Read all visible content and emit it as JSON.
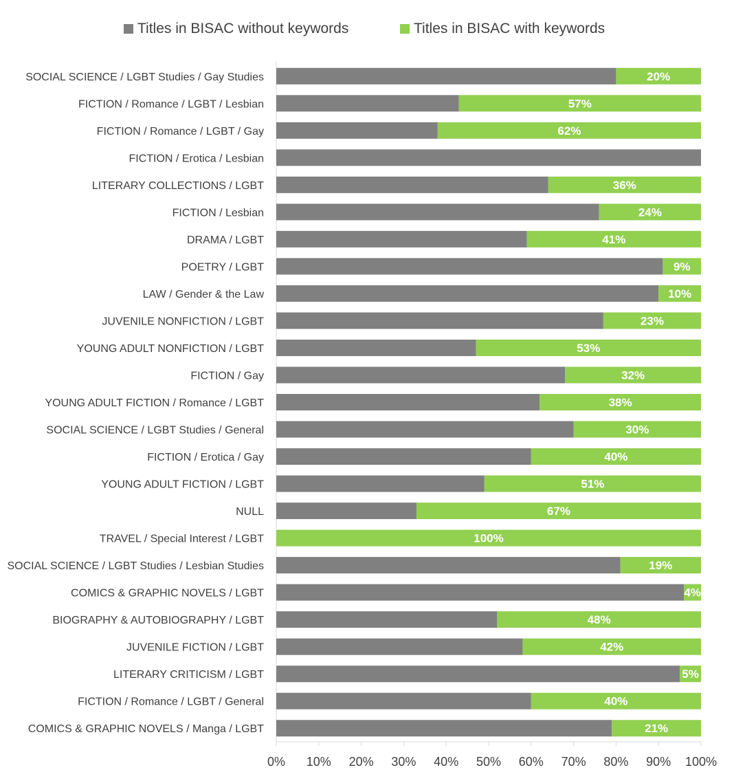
{
  "chart_data": {
    "type": "bar",
    "orientation": "horizontal",
    "stacked": "percent",
    "title": "",
    "xlabel": "",
    "ylabel": "",
    "xlim": [
      0,
      100
    ],
    "x_ticks": [
      "0%",
      "10%",
      "20%",
      "30%",
      "40%",
      "50%",
      "60%",
      "70%",
      "80%",
      "90%",
      "100%"
    ],
    "grid": false,
    "legend_position": "top",
    "categories": [
      "SOCIAL SCIENCE / LGBT Studies / Gay Studies",
      "FICTION / Romance / LGBT / Lesbian",
      "FICTION / Romance / LGBT / Gay",
      "FICTION / Erotica / Lesbian",
      "LITERARY COLLECTIONS / LGBT",
      "FICTION / Lesbian",
      "DRAMA / LGBT",
      "POETRY / LGBT",
      "LAW / Gender & the Law",
      "JUVENILE NONFICTION / LGBT",
      "YOUNG ADULT NONFICTION / LGBT",
      "FICTION / Gay",
      "YOUNG ADULT FICTION / Romance / LGBT",
      "SOCIAL SCIENCE / LGBT Studies / General",
      "FICTION / Erotica / Gay",
      "YOUNG ADULT FICTION / LGBT",
      "NULL",
      "TRAVEL / Special Interest / LGBT",
      "SOCIAL SCIENCE / LGBT Studies / Lesbian Studies",
      "COMICS & GRAPHIC NOVELS / LGBT",
      "BIOGRAPHY & AUTOBIOGRAPHY / LGBT",
      "JUVENILE FICTION / LGBT",
      "LITERARY CRITICISM / LGBT",
      "FICTION / Romance / LGBT / General",
      "COMICS & GRAPHIC NOVELS / Manga / LGBT"
    ],
    "series": [
      {
        "name": "Titles in BISAC without keywords",
        "color": "#808080",
        "values": [
          80,
          43,
          38,
          100,
          64,
          76,
          59,
          91,
          90,
          77,
          47,
          68,
          62,
          70,
          60,
          49,
          33,
          0,
          81,
          96,
          52,
          58,
          95,
          60,
          79
        ]
      },
      {
        "name": "Titles in BISAC with keywords",
        "color": "#92d050",
        "values": [
          20,
          57,
          62,
          0,
          36,
          24,
          41,
          9,
          10,
          23,
          53,
          32,
          38,
          30,
          40,
          51,
          67,
          100,
          19,
          4,
          48,
          42,
          5,
          40,
          21
        ],
        "data_labels": [
          "20%",
          "57%",
          "62%",
          "",
          "36%",
          "24%",
          "41%",
          "9%",
          "10%",
          "23%",
          "53%",
          "32%",
          "38%",
          "30%",
          "40%",
          "51%",
          "67%",
          "100%",
          "19%",
          "4%",
          "48%",
          "42%",
          "5%",
          "40%",
          "21%"
        ]
      }
    ]
  }
}
